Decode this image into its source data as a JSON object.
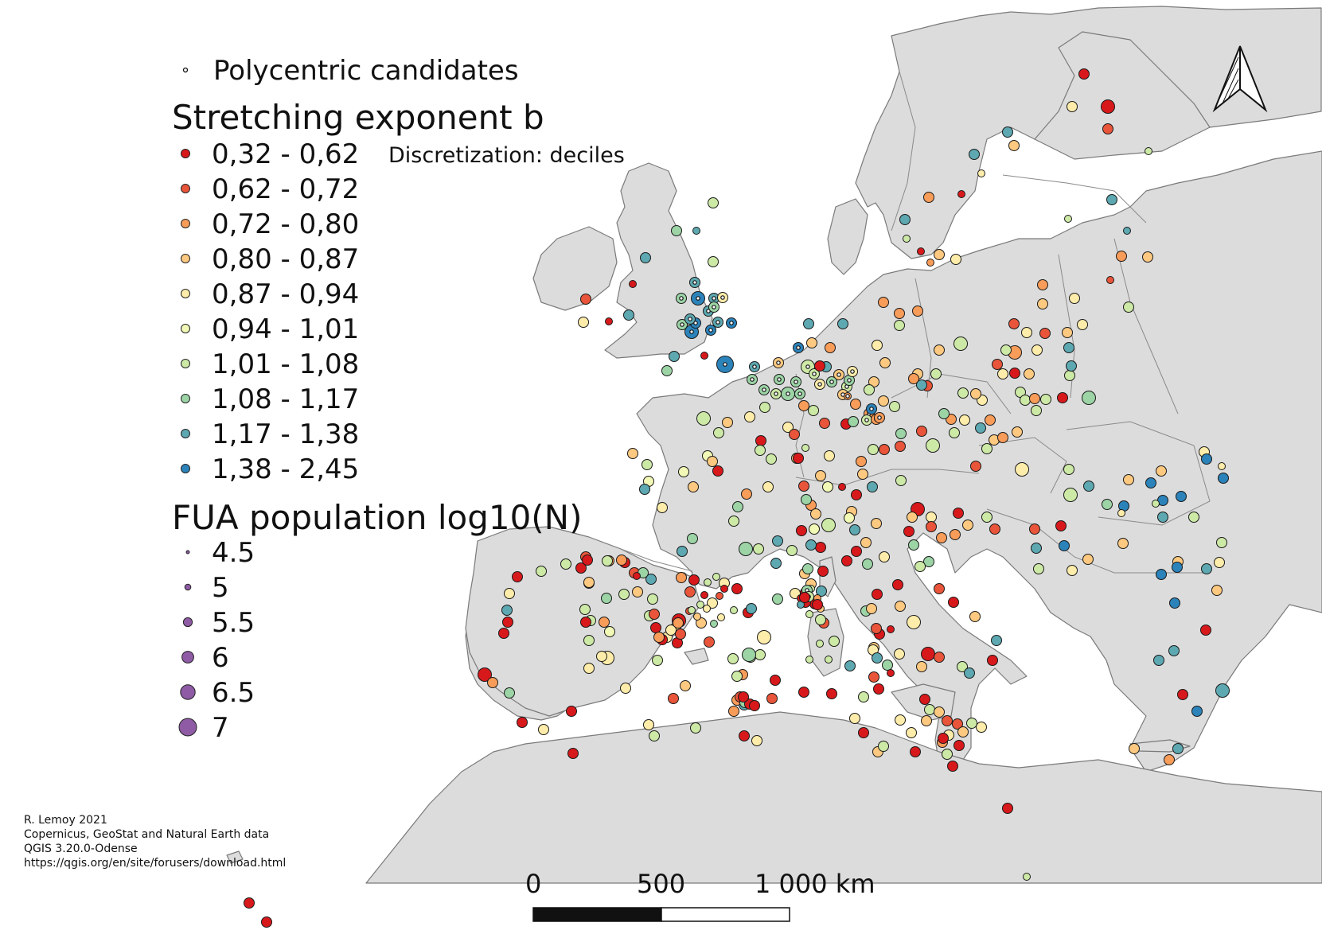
{
  "legend": {
    "candidates_label": "Polycentric candidates",
    "exponent_title": "Stretching exponent b",
    "discretization": "Discretization: deciles",
    "classes": [
      {
        "label": "0,32 - 0,62",
        "color": "#d7191c"
      },
      {
        "label": "0,62 - 0,72",
        "color": "#e8553a"
      },
      {
        "label": "0,72 - 0,80",
        "color": "#f89c59"
      },
      {
        "label": "0,80 - 0,87",
        "color": "#fdc980"
      },
      {
        "label": "0,87 - 0,94",
        "color": "#feedaa"
      },
      {
        "label": "0,94 - 1,01",
        "color": "#f2f8b5"
      },
      {
        "label": "1,01 - 1,08",
        "color": "#cde9a6"
      },
      {
        "label": "1,08 - 1,17",
        "color": "#9cd4a6"
      },
      {
        "label": "1,17 - 1,38",
        "color": "#5da8b1"
      },
      {
        "label": "1,38 - 2,45",
        "color": "#2b83ba"
      }
    ],
    "population_title": "FUA population log10(N)",
    "population_classes": [
      {
        "label": "4.5",
        "value": 4.5
      },
      {
        "label": "5",
        "value": 5
      },
      {
        "label": "5.5",
        "value": 5.5
      },
      {
        "label": "6",
        "value": 6
      },
      {
        "label": "6.5",
        "value": 6.5
      },
      {
        "label": "7",
        "value": 7
      }
    ],
    "population_color": "#8e5ba4"
  },
  "credits": [
    "R. Lemoy 2021",
    "Copernicus, GeoStat and Natural Earth data",
    "QGIS 3.20.0-Odense",
    "https://qgis.org/en/site/forusers/download.html"
  ],
  "scale_bar": {
    "labels": [
      "0",
      "500",
      "1 000 km"
    ]
  },
  "colors": {
    "land": "#dcdcdc",
    "border": "#7a7a7a",
    "sea": "#ffffff"
  },
  "north_arrow": "north-arrow-icon"
}
